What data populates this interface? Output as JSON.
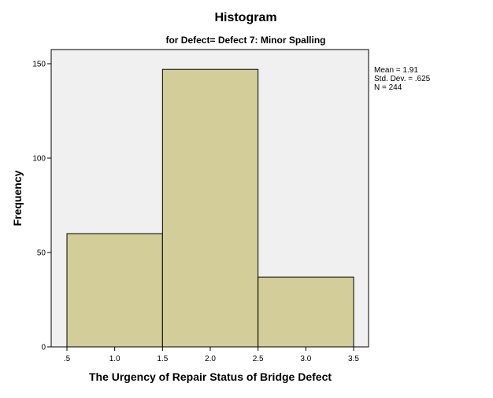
{
  "chart_data": {
    "type": "bar",
    "title": "Histogram",
    "subtitle": "for Defect= Defect 7: Minor Spalling",
    "xlabel": "The Urgency of Repair Status of Bridge Defect",
    "ylabel": "Frequency",
    "bins": [
      {
        "start": 0.5,
        "end": 1.5,
        "value": 60
      },
      {
        "start": 1.5,
        "end": 2.5,
        "value": 147
      },
      {
        "start": 2.5,
        "end": 3.5,
        "value": 37
      }
    ],
    "xlim": [
      0.5,
      3.5
    ],
    "ylim": [
      0,
      160
    ],
    "x_ticks": [
      {
        "value": 0.5,
        "label": ".5"
      },
      {
        "value": 1.0,
        "label": "1.0"
      },
      {
        "value": 1.5,
        "label": "1.5"
      },
      {
        "value": 2.0,
        "label": "2.0"
      },
      {
        "value": 2.5,
        "label": "2.5"
      },
      {
        "value": 3.0,
        "label": "3.0"
      },
      {
        "value": 3.5,
        "label": "3.5"
      }
    ],
    "y_ticks": [
      {
        "value": 0,
        "label": "0"
      },
      {
        "value": 50,
        "label": "50"
      },
      {
        "value": 100,
        "label": "100"
      },
      {
        "value": 150,
        "label": "150"
      }
    ],
    "stats": {
      "mean": "Mean = 1.91",
      "std": "Std. Dev. = .625",
      "n": "N = 244"
    },
    "grid": false,
    "colors": {
      "bar_fill": "#d3ce99",
      "plot_bg": "#f0f0f0",
      "outline": "#000000"
    }
  }
}
